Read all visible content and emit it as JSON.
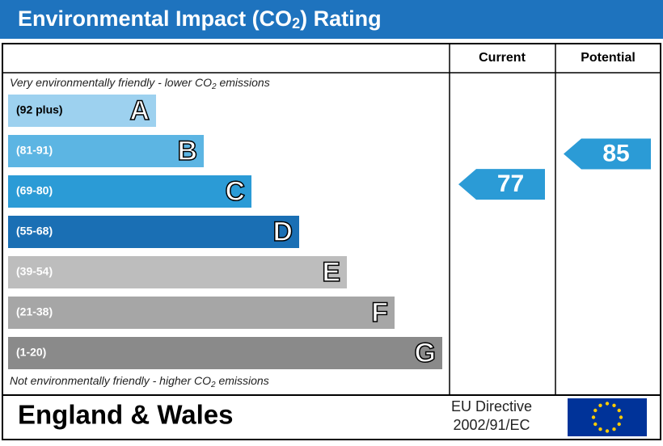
{
  "header": {
    "title": [
      "Environmental Impact (CO",
      "2",
      ") Rating"
    ]
  },
  "columns": {
    "current": "Current",
    "potential": "Potential"
  },
  "top_note": [
    "Very environmentally friendly - lower CO",
    "2",
    " emissions"
  ],
  "bottom_note": [
    "Not environmentally friendly - higher CO",
    "2",
    " emissions"
  ],
  "bands": [
    {
      "range": "(92 plus)",
      "letter": "A",
      "color": "#9dd1ef"
    },
    {
      "range": "(81-91)",
      "letter": "B",
      "color": "#5cb5e3"
    },
    {
      "range": "(69-80)",
      "letter": "C",
      "color": "#2b9bd6"
    },
    {
      "range": "(55-68)",
      "letter": "D",
      "color": "#1a6fb4"
    },
    {
      "range": "(39-54)",
      "letter": "E",
      "color": "#bdbdbd"
    },
    {
      "range": "(21-38)",
      "letter": "F",
      "color": "#a6a6a6"
    },
    {
      "range": "(1-20)",
      "letter": "G",
      "color": "#8a8a8a"
    }
  ],
  "current": 77,
  "potential": 85,
  "footer": {
    "region": "England & Wales",
    "directive": [
      "EU Directive",
      "2002/91/EC"
    ]
  }
}
